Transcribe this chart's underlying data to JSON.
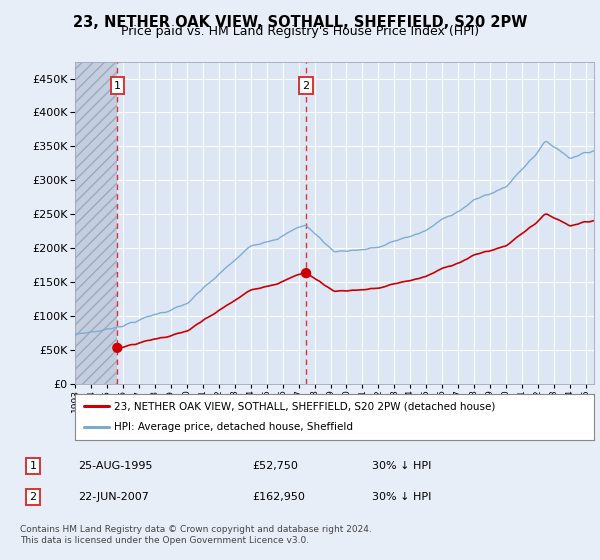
{
  "title": "23, NETHER OAK VIEW, SOTHALL, SHEFFIELD, S20 2PW",
  "subtitle": "Price paid vs. HM Land Registry's House Price Index (HPI)",
  "legend_line1": "23, NETHER OAK VIEW, SOTHALL, SHEFFIELD, S20 2PW (detached house)",
  "legend_line2": "HPI: Average price, detached house, Sheffield",
  "table_row1_label": "1",
  "table_row1_date": "25-AUG-1995",
  "table_row1_price": "£52,750",
  "table_row1_hpi": "30% ↓ HPI",
  "table_row2_label": "2",
  "table_row2_date": "22-JUN-2007",
  "table_row2_price": "£162,950",
  "table_row2_hpi": "30% ↓ HPI",
  "footnote": "Contains HM Land Registry data © Crown copyright and database right 2024.\nThis data is licensed under the Open Government Licence v3.0.",
  "ylim": [
    0,
    475000
  ],
  "yticks": [
    0,
    50000,
    100000,
    150000,
    200000,
    250000,
    300000,
    350000,
    400000,
    450000
  ],
  "xmin": 1993,
  "xmax": 2025.5,
  "sale1_year": 1995.65,
  "sale1_price": 52750,
  "sale2_year": 2007.47,
  "sale2_price": 162950,
  "bg_color": "#e8eef8",
  "plot_bg": "#dde6f4",
  "hatch_color": "#c4cedf",
  "grid_color": "#ffffff",
  "red_line_color": "#cc0000",
  "blue_line_color": "#7aaad0",
  "sale_dot_color": "#cc0000",
  "vline_color": "#dd3333",
  "title_fontsize": 10.5,
  "subtitle_fontsize": 9
}
